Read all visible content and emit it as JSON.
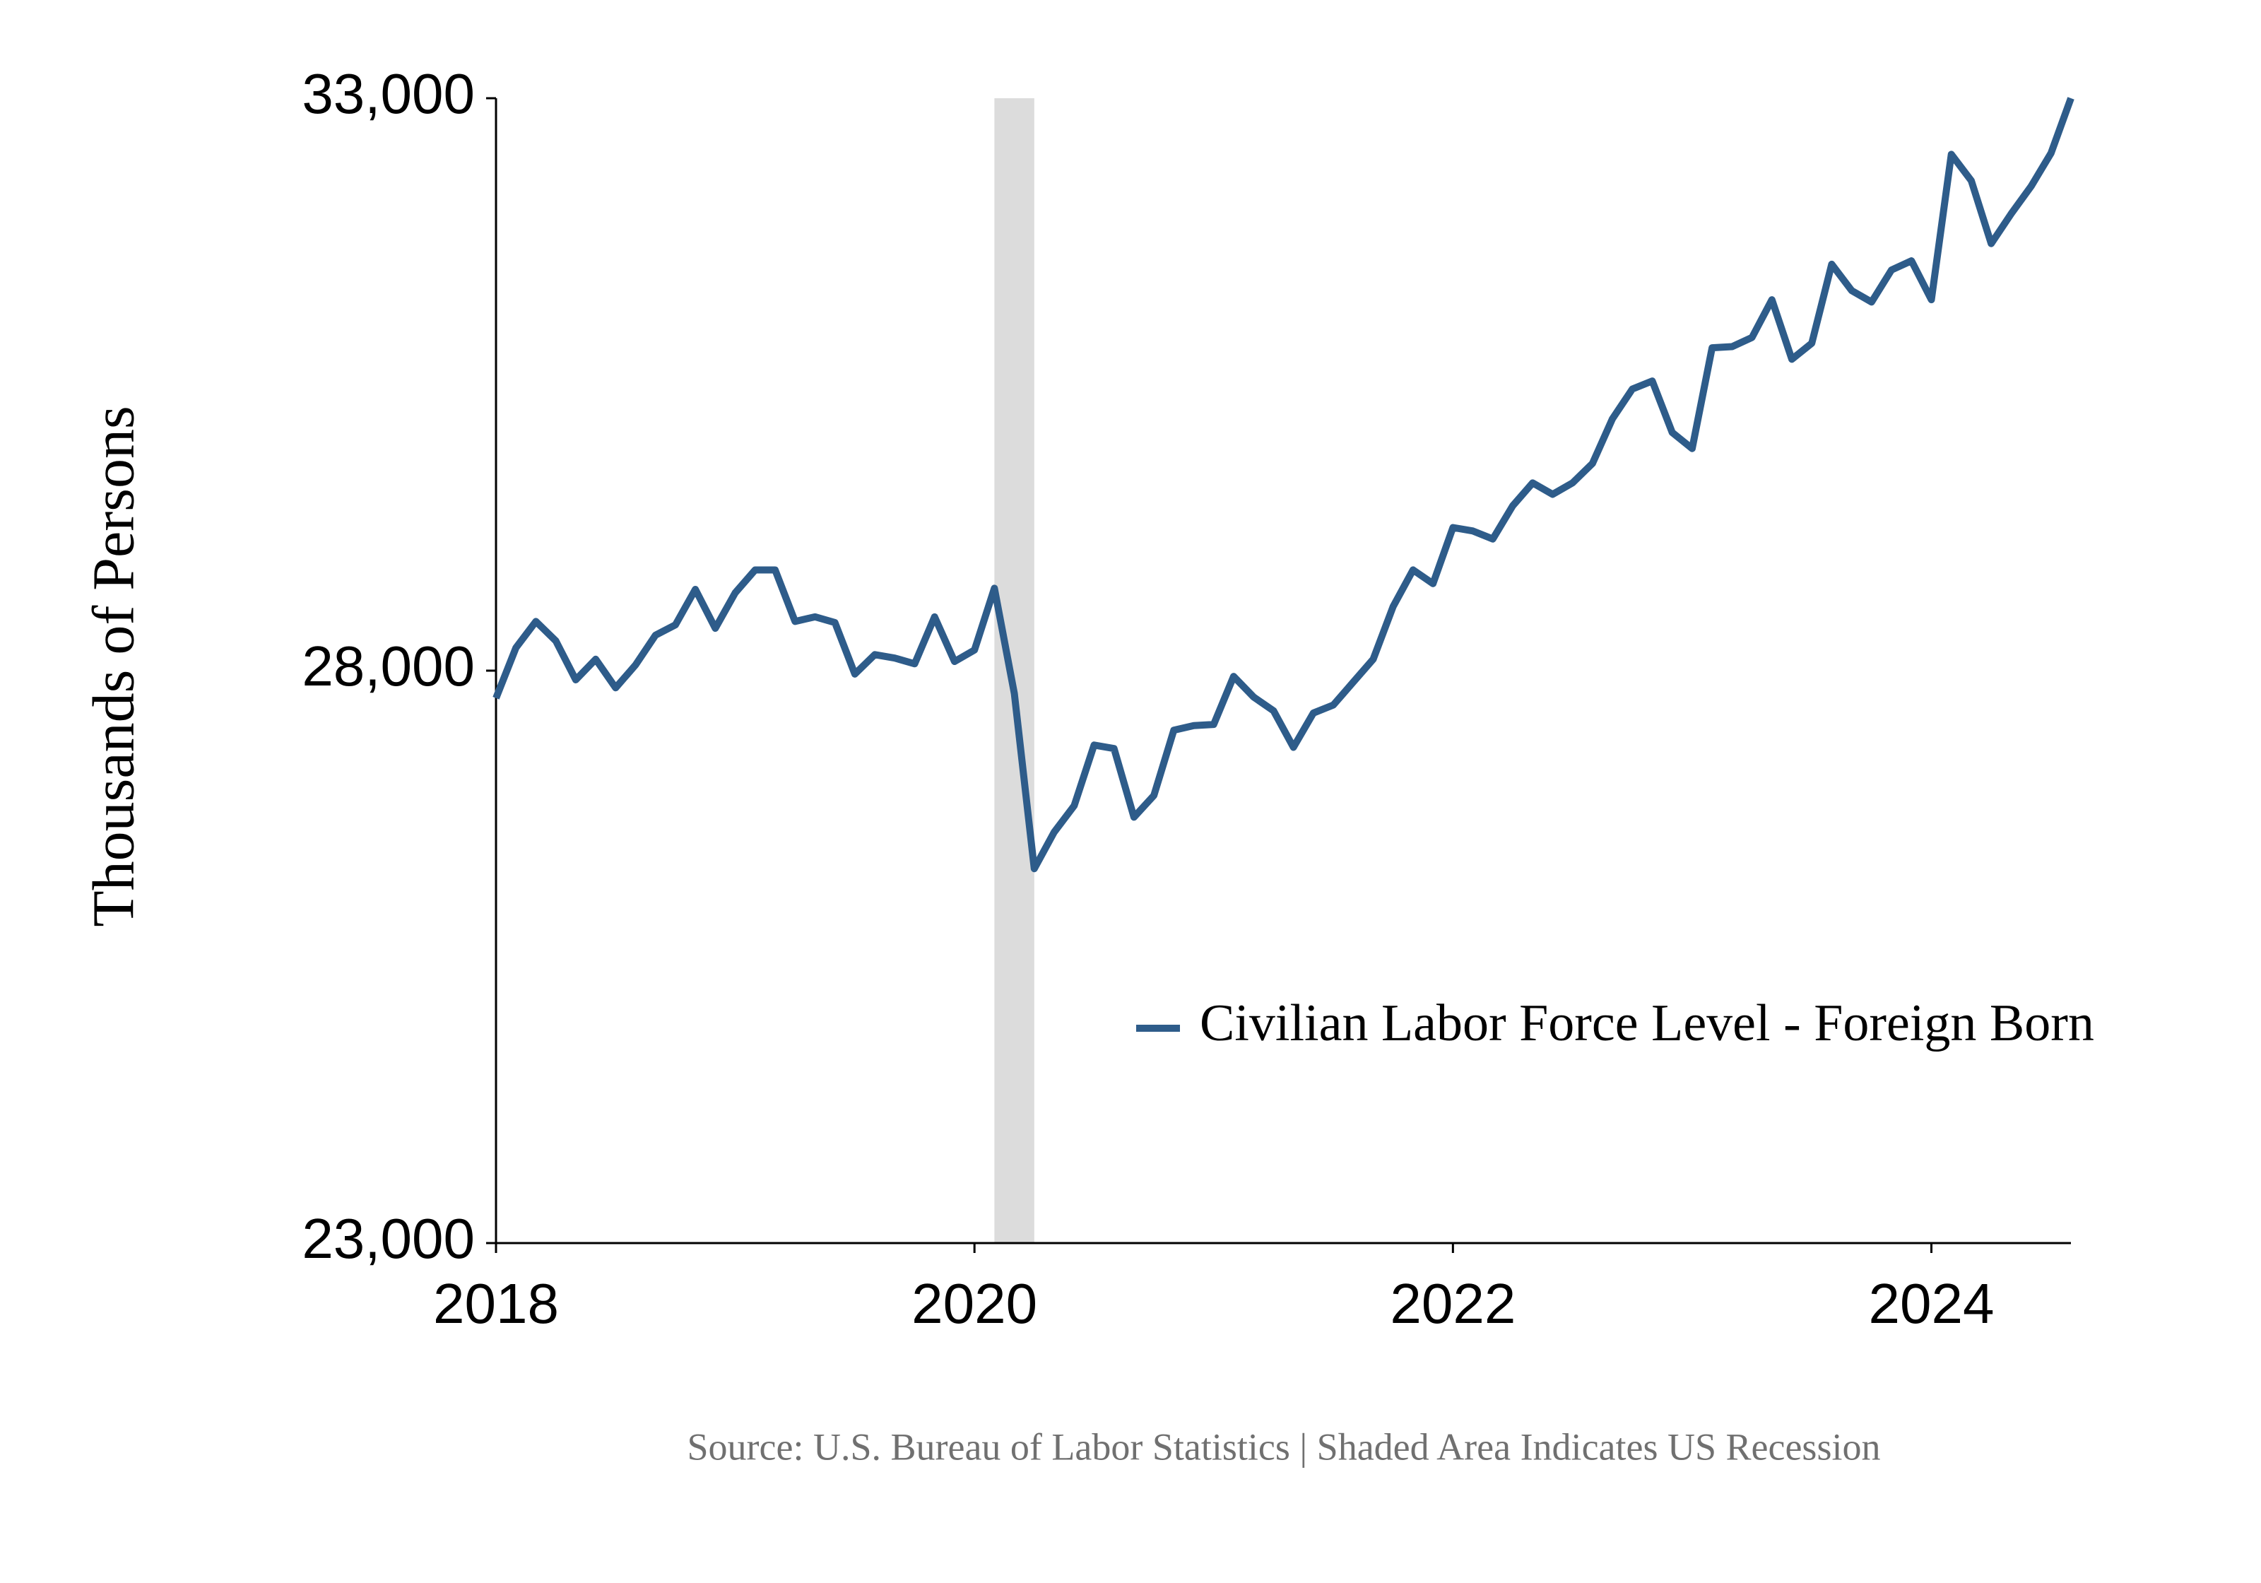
{
  "chart_data": {
    "type": "line",
    "y_label": "Thousands of Persons",
    "source": "Source: U.S. Bureau of Labor Statistics  | Shaded Area Indicates US Recession",
    "x": [
      2018,
      2018.0833,
      2018.1667,
      2018.25,
      2018.3333,
      2018.4167,
      2018.5,
      2018.5833,
      2018.6667,
      2018.75,
      2018.8333,
      2018.9167,
      2019,
      2019.0833,
      2019.1667,
      2019.25,
      2019.3333,
      2019.4167,
      2019.5,
      2019.5833,
      2019.6667,
      2019.75,
      2019.8333,
      2019.9167,
      2020,
      2020.0833,
      2020.1667,
      2020.25,
      2020.3333,
      2020.4167,
      2020.5,
      2020.5833,
      2020.6667,
      2020.75,
      2020.8333,
      2020.9167,
      2021,
      2021.0833,
      2021.1667,
      2021.25,
      2021.3333,
      2021.4167,
      2021.5,
      2021.5833,
      2021.6667,
      2021.75,
      2021.8333,
      2021.9167,
      2022,
      2022.0833,
      2022.1667,
      2022.25,
      2022.3333,
      2022.4167,
      2022.5,
      2022.5833,
      2022.6667,
      2022.75,
      2022.8333,
      2022.9167,
      2023,
      2023.0833,
      2023.1667,
      2023.25,
      2023.3333,
      2023.4167,
      2023.5,
      2023.5833,
      2023.6667,
      2023.75,
      2023.8333,
      2023.9167,
      2024,
      2024.0833,
      2024.1667,
      2024.25,
      2024.3333,
      2024.4167,
      2024.5,
      2024.5833
    ],
    "series": [
      {
        "name": "Civilian Labor Force Level - Foreign Born",
        "color": "#2e5c8a",
        "values": [
          27760,
          28200,
          28430,
          28260,
          27920,
          28100,
          27850,
          28050,
          28310,
          28400,
          28710,
          28370,
          28680,
          28880,
          28880,
          28430,
          28470,
          28420,
          27970,
          28140,
          28110,
          28060,
          28470,
          28080,
          28180,
          28720,
          27800,
          26270,
          26590,
          26820,
          27350,
          27320,
          26720,
          26910,
          27480,
          27520,
          27530,
          27950,
          27770,
          27650,
          27330,
          27630,
          27700,
          27900,
          28100,
          28560,
          28880,
          28760,
          29250,
          29220,
          29150,
          29440,
          29640,
          29540,
          29640,
          29810,
          30200,
          30460,
          30530,
          30080,
          29940,
          30820,
          30830,
          30910,
          31240,
          30720,
          30860,
          31550,
          31320,
          31220,
          31500,
          31580,
          31240,
          32510,
          32280,
          31730,
          31990,
          32230,
          32520,
          33000
        ]
      }
    ],
    "xlim": [
      2018,
      2024.5833
    ],
    "xticks": [
      2018,
      2020,
      2022,
      2024
    ],
    "ylim": [
      23000,
      33000
    ],
    "yticks": [
      {
        "value": 23000,
        "label": "23,000"
      },
      {
        "value": 28000,
        "label": "28,000"
      },
      {
        "value": 33000,
        "label": "33,000"
      }
    ],
    "recession": [
      2020.0833,
      2020.25
    ],
    "recession_color": "#dcdcdc"
  }
}
